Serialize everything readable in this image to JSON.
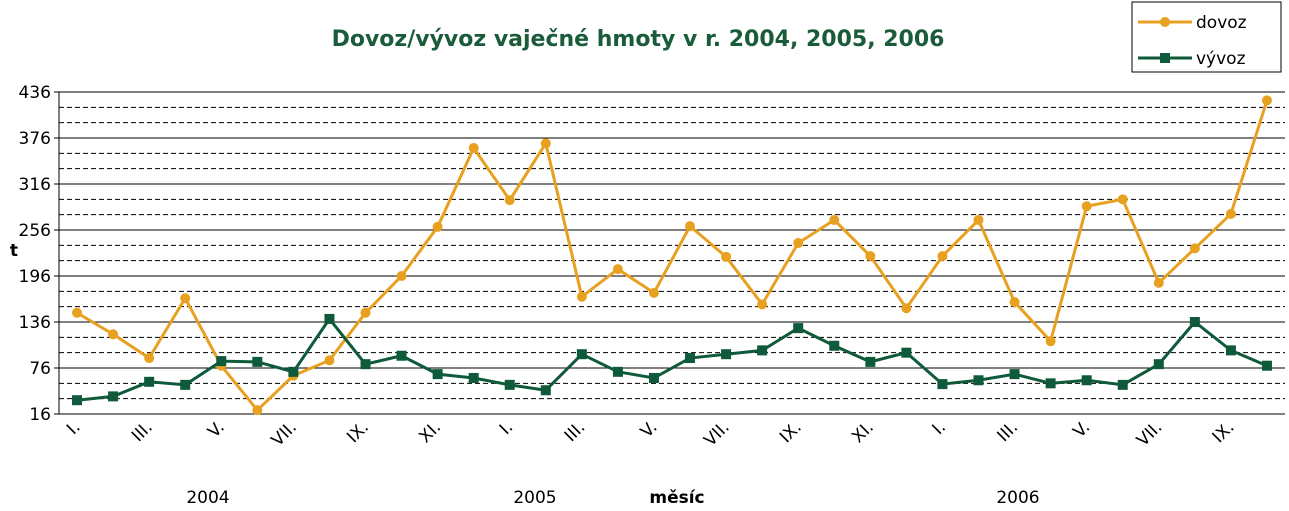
{
  "chart_data": {
    "type": "line",
    "title": "Dovoz/vývoz vaječné hmoty v r. 2004, 2005, 2006",
    "x_label": "měsíc",
    "y_label": "t",
    "categories": [
      "I.",
      null,
      "III.",
      null,
      "V.",
      null,
      "VII.",
      null,
      "IX.",
      null,
      "XI.",
      null,
      "I.",
      null,
      "III.",
      null,
      "V.",
      null,
      "VII.",
      null,
      "IX.",
      null,
      "XI.",
      null,
      "I.",
      null,
      "III.",
      null,
      "V.",
      null,
      "VII.",
      null,
      "IX.",
      null
    ],
    "year_labels": [
      "2004",
      "2005",
      "2006"
    ],
    "series": [
      {
        "name": "dovoz",
        "color": "#e8a020",
        "marker": "circle",
        "values": [
          148,
          120,
          89,
          167,
          79,
          21,
          66,
          86,
          148,
          196,
          260,
          363,
          295,
          369,
          169,
          205,
          174,
          261,
          221,
          159,
          239,
          269,
          222,
          154,
          222,
          269,
          162,
          111,
          287,
          296,
          187,
          232,
          277,
          425
        ]
      },
      {
        "name": "vývoz",
        "color": "#0f5a3a",
        "marker": "square",
        "values": [
          34,
          39,
          58,
          54,
          85,
          84,
          71,
          140,
          81,
          92,
          68,
          63,
          54,
          47,
          94,
          71,
          63,
          89,
          94,
          99,
          128,
          105,
          84,
          96,
          55,
          60,
          68,
          56,
          60,
          54,
          81,
          136,
          99,
          79
        ]
      }
    ],
    "ylim": [
      16,
      436
    ],
    "yticks": [
      16,
      76,
      136,
      196,
      256,
      316,
      376,
      436
    ],
    "minor_yticks": [
      36,
      56,
      96,
      116,
      156,
      176,
      216,
      236,
      276,
      296,
      336,
      356,
      396,
      416
    ],
    "grid": true,
    "legend": "top-right"
  }
}
